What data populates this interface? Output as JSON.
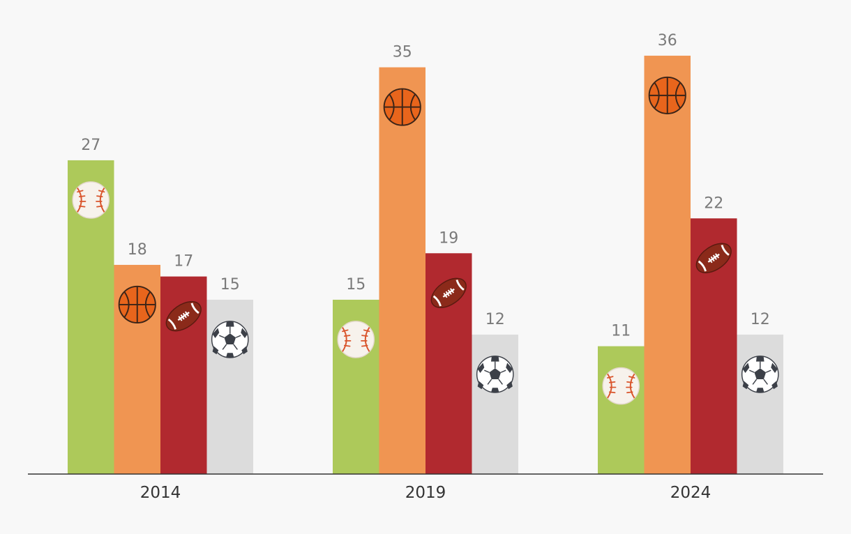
{
  "chart_data": {
    "type": "bar",
    "categories": [
      "2014",
      "2019",
      "2024"
    ],
    "series": [
      {
        "icon": "baseball-icon",
        "color": "#adc95a",
        "values": [
          27,
          15,
          11
        ]
      },
      {
        "icon": "basketball-icon",
        "color": "#f09552",
        "values": [
          18,
          35,
          36
        ]
      },
      {
        "icon": "football-icon",
        "color": "#b1292f",
        "values": [
          17,
          19,
          22
        ]
      },
      {
        "icon": "soccer-ball-icon",
        "color": "#dcdcdc",
        "values": [
          15,
          12,
          12
        ]
      }
    ],
    "value_labels": [
      [
        "27",
        "15",
        "11"
      ],
      [
        "18",
        "35",
        "36"
      ],
      [
        "17",
        "19",
        "22"
      ],
      [
        "15",
        "12",
        "12"
      ]
    ],
    "ylim": [
      0,
      40
    ],
    "grid": false,
    "legend": "none"
  }
}
